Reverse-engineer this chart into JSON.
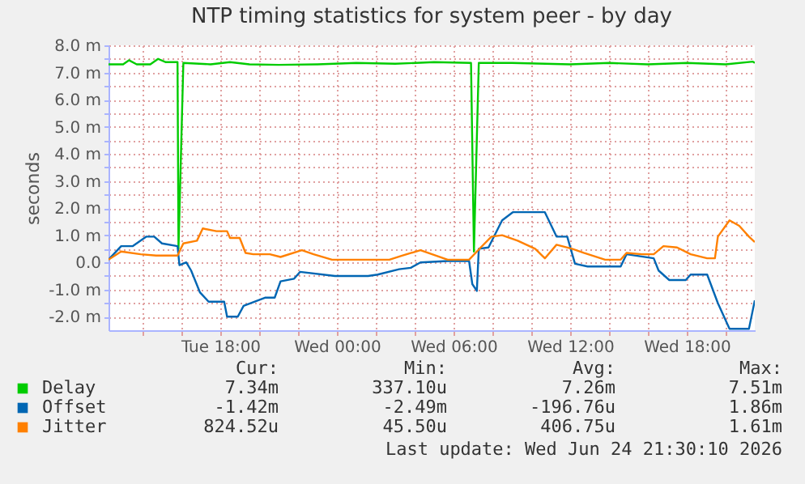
{
  "chart_data": {
    "type": "line",
    "title": "NTP timing statistics for system peer - by day",
    "ylabel": "seconds",
    "xlim": [
      "2026-06-23T12:15",
      "2026-06-24T21:30"
    ],
    "xticks": [
      {
        "value": "2026-06-23T14:00",
        "label": null
      },
      {
        "value": "2026-06-23T16:00",
        "label": null
      },
      {
        "value": "2026-06-23T18:00",
        "label": "Tue 18:00"
      },
      {
        "value": "2026-06-23T20:00",
        "label": null
      },
      {
        "value": "2026-06-23T22:00",
        "label": null
      },
      {
        "value": "2026-06-24T00:00",
        "label": "Wed 00:00"
      },
      {
        "value": "2026-06-24T02:00",
        "label": null
      },
      {
        "value": "2026-06-24T04:00",
        "label": null
      },
      {
        "value": "2026-06-24T06:00",
        "label": "Wed 06:00"
      },
      {
        "value": "2026-06-24T08:00",
        "label": null
      },
      {
        "value": "2026-06-24T10:00",
        "label": null
      },
      {
        "value": "2026-06-24T12:00",
        "label": "Wed 12:00"
      },
      {
        "value": "2026-06-24T14:00",
        "label": null
      },
      {
        "value": "2026-06-24T16:00",
        "label": null
      },
      {
        "value": "2026-06-24T18:00",
        "label": "Wed 18:00"
      },
      {
        "value": "2026-06-24T20:00",
        "label": null
      }
    ],
    "ylim": [
      -2.5,
      8.0
    ],
    "yticks": [
      {
        "value": -2,
        "label": "-2.0 m"
      },
      {
        "value": -1.5,
        "label": null
      },
      {
        "value": -1,
        "label": "-1.0 m"
      },
      {
        "value": -0.5,
        "label": null
      },
      {
        "value": 0,
        "label": "0.0"
      },
      {
        "value": 0.5,
        "label": null
      },
      {
        "value": 1,
        "label": "1.0 m"
      },
      {
        "value": 1.5,
        "label": null
      },
      {
        "value": 2,
        "label": "2.0 m"
      },
      {
        "value": 2.5,
        "label": null
      },
      {
        "value": 3,
        "label": "3.0 m"
      },
      {
        "value": 3.5,
        "label": null
      },
      {
        "value": 4,
        "label": "4.0 m"
      },
      {
        "value": 4.5,
        "label": null
      },
      {
        "value": 5,
        "label": "5.0 m"
      },
      {
        "value": 5.5,
        "label": null
      },
      {
        "value": 6,
        "label": "6.0 m"
      },
      {
        "value": 6.5,
        "label": null
      },
      {
        "value": 7,
        "label": "7.0 m"
      },
      {
        "value": 7.5,
        "label": null
      },
      {
        "value": 8,
        "label": "8.0 m"
      }
    ],
    "grid": true,
    "legend": "bottom",
    "marker": "none",
    "line_style": "solid",
    "series": [
      {
        "name": "Delay",
        "color": "#00cc00",
        "x": [
          "2026-06-23T12:15",
          "2026-06-23T13:00",
          "2026-06-23T13:18",
          "2026-06-23T13:42",
          "2026-06-23T14:24",
          "2026-06-23T14:48",
          "2026-06-23T15:12",
          "2026-06-23T15:48",
          "2026-06-23T15:51",
          "2026-06-23T16:06",
          "2026-06-23T17:30",
          "2026-06-23T18:30",
          "2026-06-23T19:30",
          "2026-06-23T21:00",
          "2026-06-23T23:00",
          "2026-06-24T01:00",
          "2026-06-24T03:00",
          "2026-06-24T05:00",
          "2026-06-24T06:54",
          "2026-06-24T07:03",
          "2026-06-24T07:18",
          "2026-06-24T09:00",
          "2026-06-24T12:00",
          "2026-06-24T14:00",
          "2026-06-24T16:00",
          "2026-06-24T18:00",
          "2026-06-24T20:00",
          "2026-06-24T21:24",
          "2026-06-24T21:30"
        ],
        "values": [
          7.3,
          7.3,
          7.45,
          7.3,
          7.3,
          7.5,
          7.38,
          7.38,
          0.5,
          7.35,
          7.3,
          7.38,
          7.3,
          7.28,
          7.3,
          7.35,
          7.32,
          7.38,
          7.35,
          0.4,
          7.35,
          7.35,
          7.3,
          7.35,
          7.3,
          7.35,
          7.3,
          7.4,
          7.35
        ]
      },
      {
        "name": "Offset",
        "color": "#0066b3",
        "x": [
          "2026-06-23T12:15",
          "2026-06-23T12:54",
          "2026-06-23T13:30",
          "2026-06-23T14:12",
          "2026-06-23T14:36",
          "2026-06-23T15:00",
          "2026-06-23T15:48",
          "2026-06-23T15:54",
          "2026-06-23T16:15",
          "2026-06-23T16:30",
          "2026-06-23T16:57",
          "2026-06-23T17:24",
          "2026-06-23T18:12",
          "2026-06-23T18:21",
          "2026-06-23T18:54",
          "2026-06-23T19:12",
          "2026-06-23T20:18",
          "2026-06-23T20:48",
          "2026-06-23T21:06",
          "2026-06-23T21:48",
          "2026-06-23T22:06",
          "2026-06-23T23:54",
          "2026-06-24T01:36",
          "2026-06-24T02:06",
          "2026-06-24T03:12",
          "2026-06-24T03:48",
          "2026-06-24T04:18",
          "2026-06-24T05:42",
          "2026-06-24T06:48",
          "2026-06-24T06:58",
          "2026-06-24T07:12",
          "2026-06-24T07:18",
          "2026-06-24T07:48",
          "2026-06-24T08:30",
          "2026-06-24T09:03",
          "2026-06-24T10:42",
          "2026-06-24T11:18",
          "2026-06-24T11:51",
          "2026-06-24T12:15",
          "2026-06-24T12:54",
          "2026-06-24T14:36",
          "2026-06-24T14:54",
          "2026-06-24T16:18",
          "2026-06-24T16:33",
          "2026-06-24T17:06",
          "2026-06-24T17:57",
          "2026-06-24T18:12",
          "2026-06-24T19:03",
          "2026-06-24T19:36",
          "2026-06-24T20:12",
          "2026-06-24T21:12",
          "2026-06-24T21:30"
        ],
        "values": [
          0.1,
          0.6,
          0.6,
          0.95,
          0.95,
          0.7,
          0.6,
          -0.1,
          0.0,
          -0.3,
          -1.1,
          -1.45,
          -1.45,
          -2.0,
          -2.0,
          -1.6,
          -1.3,
          -1.3,
          -0.7,
          -0.6,
          -0.35,
          -0.5,
          -0.5,
          -0.45,
          -0.25,
          -0.2,
          0.0,
          0.05,
          0.05,
          -0.8,
          -1.05,
          0.5,
          0.55,
          1.55,
          1.85,
          1.85,
          0.95,
          0.95,
          -0.05,
          -0.15,
          -0.15,
          0.3,
          0.15,
          -0.3,
          -0.65,
          -0.65,
          -0.45,
          -0.45,
          -1.5,
          -2.45,
          -2.45,
          -1.4
        ]
      },
      {
        "name": "Jitter",
        "color": "#ff8000",
        "x": [
          "2026-06-23T12:15",
          "2026-06-23T12:54",
          "2026-06-23T13:54",
          "2026-06-23T14:42",
          "2026-06-23T15:48",
          "2026-06-23T16:06",
          "2026-06-23T16:48",
          "2026-06-23T17:06",
          "2026-06-23T17:48",
          "2026-06-23T18:21",
          "2026-06-23T18:30",
          "2026-06-23T19:00",
          "2026-06-23T19:18",
          "2026-06-23T19:42",
          "2026-06-23T20:33",
          "2026-06-23T21:06",
          "2026-06-23T22:12",
          "2026-06-23T22:48",
          "2026-06-23T23:45",
          "2026-06-24T02:42",
          "2026-06-24T03:21",
          "2026-06-24T04:18",
          "2026-06-24T05:42",
          "2026-06-24T06:48",
          "2026-06-24T07:24",
          "2026-06-24T07:57",
          "2026-06-24T08:30",
          "2026-06-24T09:18",
          "2026-06-24T10:12",
          "2026-06-24T10:42",
          "2026-06-24T11:18",
          "2026-06-24T12:06",
          "2026-06-24T12:42",
          "2026-06-24T13:48",
          "2026-06-24T14:36",
          "2026-06-24T14:54",
          "2026-06-24T15:42",
          "2026-06-24T16:18",
          "2026-06-24T16:48",
          "2026-06-24T17:30",
          "2026-06-24T18:12",
          "2026-06-24T19:03",
          "2026-06-24T19:27",
          "2026-06-24T19:36",
          "2026-06-24T20:12",
          "2026-06-24T20:42",
          "2026-06-24T21:12",
          "2026-06-24T21:30"
        ],
        "values": [
          0.1,
          0.4,
          0.3,
          0.25,
          0.25,
          0.7,
          0.8,
          1.25,
          1.15,
          1.15,
          0.9,
          0.9,
          0.35,
          0.3,
          0.3,
          0.2,
          0.45,
          0.3,
          0.1,
          0.1,
          0.25,
          0.45,
          0.1,
          0.1,
          0.55,
          0.95,
          1.0,
          0.8,
          0.5,
          0.15,
          0.65,
          0.5,
          0.35,
          0.1,
          0.1,
          0.35,
          0.3,
          0.3,
          0.6,
          0.55,
          0.3,
          0.15,
          0.15,
          0.95,
          1.55,
          1.35,
          0.95,
          0.75
        ]
      }
    ],
    "annotations": [
      "Cur:",
      "Min:",
      "Avg:",
      "Max:",
      "7.34m",
      "337.10u",
      "7.26m",
      "7.51m",
      "-1.42m",
      "-2.49m",
      "-196.76u",
      "1.86m",
      "824.52u",
      "45.50u",
      "406.75u",
      "1.61m",
      "Last update: Wed Jun 24 21:30:10 2026"
    ]
  }
}
